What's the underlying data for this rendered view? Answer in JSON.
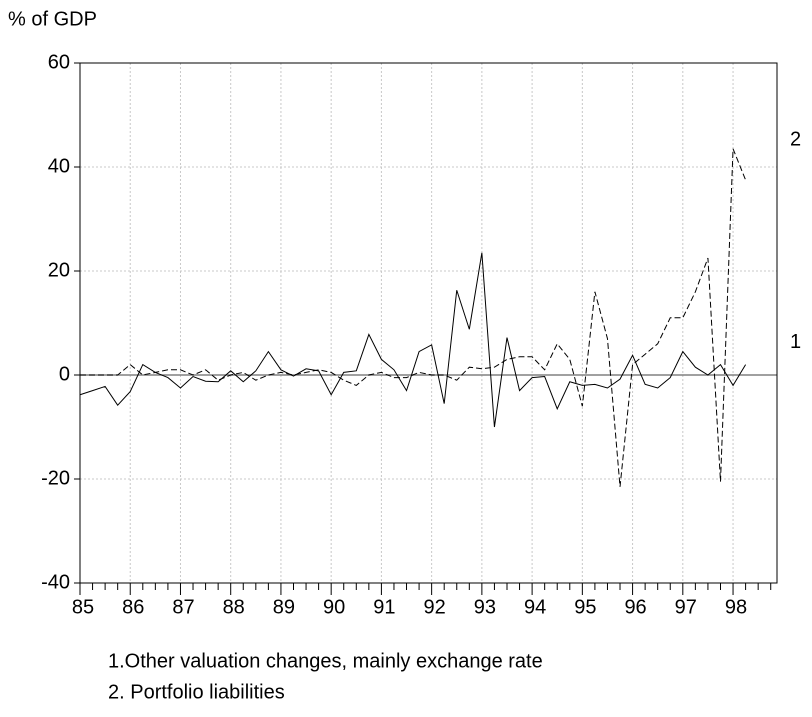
{
  "chart_data": {
    "type": "line",
    "y_label": "% of GDP",
    "categories": [
      "85",
      null,
      null,
      null,
      "86",
      null,
      null,
      null,
      "87",
      null,
      null,
      null,
      "88",
      null,
      null,
      null,
      "89",
      null,
      null,
      null,
      "90",
      null,
      null,
      null,
      "91",
      null,
      null,
      null,
      "92",
      null,
      null,
      null,
      "93",
      null,
      null,
      null,
      "94",
      null,
      null,
      null,
      "95",
      null,
      null,
      null,
      "96",
      null,
      null,
      null,
      "97",
      null,
      null,
      null,
      "98",
      null,
      null,
      null
    ],
    "series": [
      {
        "name": "1",
        "color": "#000000",
        "dashed": false,
        "values": [
          -3.8,
          -3.0,
          -2.2,
          -5.8,
          -3.2,
          2.0,
          0.5,
          -0.5,
          -2.5,
          -0.3,
          -1.2,
          -1.3,
          0.8,
          -1.3,
          0.8,
          4.5,
          1.0,
          -0.2,
          1.2,
          0.8,
          -3.8,
          0.5,
          0.8,
          7.8,
          3.0,
          1.0,
          -3.0,
          4.5,
          5.8,
          -5.5,
          16.3,
          8.8,
          23.5,
          -10.0,
          7.2,
          -3.0,
          -0.5,
          -0.3,
          -6.5,
          -1.3,
          -2.0,
          -1.8,
          -2.5,
          -0.8,
          3.8,
          -1.8,
          -2.5,
          -0.5,
          4.5,
          1.5,
          0.0,
          2.0,
          -2.0,
          2.0,
          null,
          null
        ]
      },
      {
        "name": "2",
        "color": "#000000",
        "dashed": true,
        "values": [
          0,
          0,
          0,
          0,
          2,
          0,
          0.5,
          1,
          1,
          0,
          1,
          -1,
          0,
          0.5,
          -1,
          0,
          0.5,
          0,
          0.5,
          1,
          0.5,
          -1,
          -2,
          0,
          0.5,
          -0.5,
          -0.5,
          0.5,
          0,
          0,
          -1,
          1.5,
          1.2,
          1.5,
          3,
          3.5,
          3.5,
          1,
          6,
          3,
          -6,
          16,
          7,
          -21.5,
          2,
          4,
          6,
          11,
          11,
          16,
          22.5,
          -20.5,
          43.5,
          37.5,
          null,
          null
        ]
      }
    ],
    "ylim": [
      -40,
      60
    ],
    "yticks": [
      -40,
      -20,
      0,
      20,
      40,
      60
    ],
    "grid": true,
    "notes": [
      "1.Other valuation changes, mainly exchange rate",
      "2. Portfolio liabilities"
    ]
  }
}
